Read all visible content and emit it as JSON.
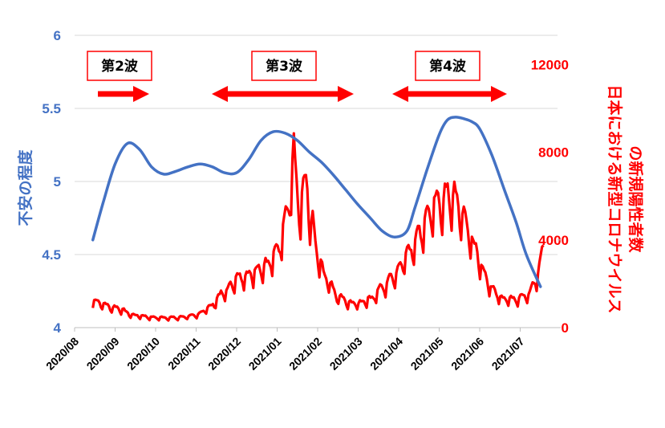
{
  "chart_data": {
    "type": "line",
    "colors": {
      "anxiety": "#4472C4",
      "cases": "#FF0000",
      "grid": "#D9D9D9",
      "box_border": "#FF0000"
    },
    "x_tick_labels": [
      "2020/08",
      "2020/09",
      "2020/10",
      "2020/11",
      "2020/12",
      "2021/01",
      "2021/02",
      "2021/03",
      "2021/04",
      "2021/05",
      "2021/06",
      "2021/07"
    ],
    "x_range_months": [
      0,
      11.6
    ],
    "y_left": {
      "label": "不安の程度",
      "ylim": [
        4,
        6
      ],
      "ticks": [
        "4",
        "4.5",
        "5",
        "5.5",
        "6"
      ],
      "tick_values": [
        4,
        4.5,
        5,
        5.5,
        6
      ]
    },
    "y_right": {
      "label_line1": "日本における新型コロナウイルス",
      "label_line2": "の新規陽性者数",
      "ylim": [
        0,
        13333
      ],
      "ticks": [
        "0",
        "4000",
        "8000",
        "12000"
      ],
      "tick_values": [
        0,
        4000,
        8000,
        12000
      ]
    },
    "grid": true,
    "series": [
      {
        "key": "anxiety",
        "axis": "left",
        "x": [
          0.45,
          0.7,
          1.0,
          1.3,
          1.6,
          1.9,
          2.2,
          2.5,
          2.8,
          3.1,
          3.4,
          3.7,
          4.0,
          4.3,
          4.6,
          4.9,
          5.2,
          5.5,
          5.8,
          6.1,
          6.4,
          6.7,
          7.0,
          7.3,
          7.6,
          7.9,
          8.2,
          8.4,
          8.7,
          9.0,
          9.2,
          9.4,
          9.6,
          9.8,
          10.0,
          10.3,
          10.6,
          10.9,
          11.15,
          11.5
        ],
        "values": [
          4.6,
          4.85,
          5.12,
          5.26,
          5.22,
          5.1,
          5.05,
          5.07,
          5.1,
          5.12,
          5.1,
          5.06,
          5.06,
          5.15,
          5.28,
          5.34,
          5.33,
          5.28,
          5.2,
          5.13,
          5.04,
          4.94,
          4.84,
          4.75,
          4.66,
          4.62,
          4.66,
          4.82,
          5.08,
          5.32,
          5.42,
          5.44,
          5.43,
          5.41,
          5.36,
          5.18,
          4.95,
          4.72,
          4.5,
          4.28
        ]
      },
      {
        "key": "cases",
        "axis": "right",
        "x_start": 0.45,
        "step": 0.0333,
        "anchors": [
          [
            0.45,
            1200
          ],
          [
            1.0,
            900
          ],
          [
            1.5,
            550
          ],
          [
            2.0,
            450
          ],
          [
            2.5,
            450
          ],
          [
            3.0,
            550
          ],
          [
            3.3,
            900
          ],
          [
            3.7,
            1600
          ],
          [
            4.0,
            2200
          ],
          [
            4.3,
            2400
          ],
          [
            4.7,
            2800
          ],
          [
            5.0,
            3500
          ],
          [
            5.25,
            5000
          ],
          [
            5.4,
            7800
          ],
          [
            5.55,
            5500
          ],
          [
            5.7,
            6500
          ],
          [
            5.85,
            4800
          ],
          [
            6.0,
            3200
          ],
          [
            6.2,
            2200
          ],
          [
            6.5,
            1400
          ],
          [
            6.8,
            1100
          ],
          [
            7.0,
            1100
          ],
          [
            7.3,
            1300
          ],
          [
            7.6,
            1800
          ],
          [
            7.9,
            2400
          ],
          [
            8.2,
            3300
          ],
          [
            8.5,
            4200
          ],
          [
            8.7,
            5000
          ],
          [
            8.9,
            5500
          ],
          [
            9.1,
            5800
          ],
          [
            9.3,
            6000
          ],
          [
            9.5,
            5400
          ],
          [
            9.7,
            4500
          ],
          [
            9.9,
            3500
          ],
          [
            10.1,
            2500
          ],
          [
            10.3,
            1700
          ],
          [
            10.6,
            1300
          ],
          [
            10.9,
            1300
          ],
          [
            11.2,
            1500
          ],
          [
            11.4,
            2300
          ],
          [
            11.6,
            3700
          ]
        ],
        "weekly_amplitude": 0.3,
        "seed": 7
      }
    ],
    "annotations": [
      {
        "label": "第2波",
        "arrow": "right"
      },
      {
        "label": "第3波",
        "arrow": "both"
      },
      {
        "label": "第4波",
        "arrow": "both"
      }
    ]
  }
}
